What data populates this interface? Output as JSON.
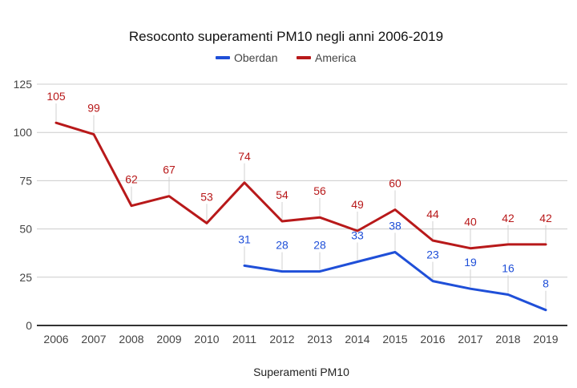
{
  "chart_data": {
    "type": "line",
    "title": "Resoconto superamenti PM10 negli anni 2006-2019",
    "xlabel": "Superamenti PM10",
    "ylabel": "",
    "ylim": [
      0,
      125
    ],
    "yticks": [
      0,
      25,
      50,
      75,
      100,
      125
    ],
    "grid": true,
    "legend_position": "top-center",
    "x": [
      "2006",
      "2007",
      "2008",
      "2009",
      "2010",
      "2011",
      "2012",
      "2013",
      "2014",
      "2015",
      "2016",
      "2017",
      "2018",
      "2019"
    ],
    "series": [
      {
        "name": "Oberdan",
        "color": "#1f4fd8",
        "values": [
          null,
          null,
          null,
          null,
          null,
          31,
          28,
          28,
          33,
          38,
          23,
          19,
          16,
          8
        ]
      },
      {
        "name": "America",
        "color": "#b8191a",
        "values": [
          105,
          99,
          62,
          67,
          53,
          74,
          54,
          56,
          49,
          60,
          44,
          40,
          42,
          42
        ]
      }
    ],
    "data_labels": true
  }
}
